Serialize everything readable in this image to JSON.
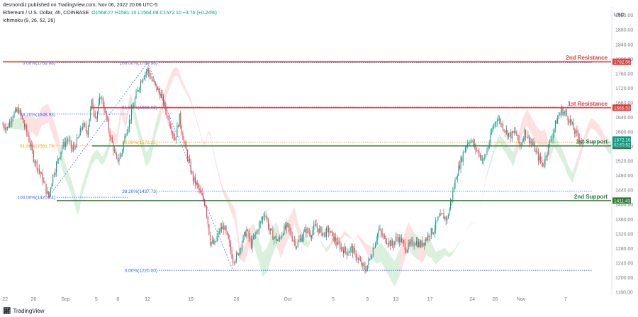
{
  "header": {
    "publisher": "desmondiz published on TradingView.com, Nov 06, 2022 20:06 UTC-5",
    "symbol": "Ethereum / U.S. Dollar, 4h, COINBASE",
    "ohlc": "O1568.27  H1581.10  L1564.08  C1572.10  +3.76 (+0.24%)",
    "indicator": "Ichimoku (9, 26, 52, 26)"
  },
  "brand": {
    "name": "TradingView",
    "logo_icon": "tradingview-logo-icon"
  },
  "colors": {
    "up": "#089981",
    "down": "#f23645",
    "resistance": "#e53935",
    "support": "#2e7d32",
    "fib_blue": "#2962ff",
    "fib_orange": "#ff9800",
    "cloud_green": "#d8f0dc",
    "cloud_red": "#fde0e0",
    "price_badge": "#089981"
  },
  "chart_data": {
    "type": "candlestick",
    "currency_label": "USD",
    "y_ticks": [
      1160,
      1200,
      1240,
      1280,
      1320,
      1360,
      1400,
      1440,
      1480,
      1520,
      1560,
      1600,
      1640,
      1680,
      1720,
      1760,
      1800,
      1840,
      1880,
      1920
    ],
    "x_ticks": [
      "22",
      "26",
      "Sep",
      "5",
      "8",
      "12",
      "19",
      "26",
      "Oct",
      "5",
      "9",
      "13",
      "17",
      "24",
      "28",
      "Nov",
      "7"
    ],
    "ylim": [
      1160,
      1935
    ],
    "path_points": [
      [
        0,
        1620
      ],
      [
        4,
        1610
      ],
      [
        8,
        1645
      ],
      [
        14,
        1660
      ],
      [
        18,
        1625
      ],
      [
        22,
        1590
      ],
      [
        27,
        1530
      ],
      [
        31,
        1500
      ],
      [
        35,
        1470
      ],
      [
        40,
        1420
      ],
      [
        44,
        1480
      ],
      [
        48,
        1520
      ],
      [
        52,
        1560
      ],
      [
        57,
        1580
      ],
      [
        61,
        1550
      ],
      [
        66,
        1580
      ],
      [
        70,
        1620
      ],
      [
        74,
        1600
      ],
      [
        78,
        1680
      ],
      [
        82,
        1640
      ],
      [
        86,
        1700
      ],
      [
        90,
        1650
      ],
      [
        95,
        1580
      ],
      [
        100,
        1520
      ],
      [
        104,
        1540
      ],
      [
        108,
        1600
      ],
      [
        112,
        1640
      ],
      [
        116,
        1690
      ],
      [
        120,
        1730
      ],
      [
        124,
        1760
      ],
      [
        127,
        1770
      ],
      [
        131,
        1740
      ],
      [
        135,
        1720
      ],
      [
        139,
        1700
      ],
      [
        143,
        1660
      ],
      [
        147,
        1620
      ],
      [
        151,
        1580
      ],
      [
        155,
        1640
      ],
      [
        159,
        1570
      ],
      [
        163,
        1520
      ],
      [
        167,
        1470
      ],
      [
        171,
        1450
      ],
      [
        175,
        1420
      ],
      [
        178,
        1400
      ],
      [
        182,
        1300
      ],
      [
        186,
        1290
      ],
      [
        190,
        1330
      ],
      [
        194,
        1340
      ],
      [
        198,
        1300
      ],
      [
        202,
        1250
      ],
      [
        206,
        1260
      ],
      [
        210,
        1300
      ],
      [
        214,
        1330
      ],
      [
        218,
        1290
      ],
      [
        222,
        1320
      ],
      [
        226,
        1350
      ],
      [
        230,
        1380
      ],
      [
        234,
        1330
      ],
      [
        238,
        1310
      ],
      [
        242,
        1300
      ],
      [
        246,
        1330
      ],
      [
        250,
        1340
      ],
      [
        254,
        1310
      ],
      [
        258,
        1290
      ],
      [
        262,
        1310
      ],
      [
        266,
        1330
      ],
      [
        270,
        1320
      ],
      [
        274,
        1340
      ],
      [
        278,
        1330
      ],
      [
        282,
        1320
      ],
      [
        286,
        1330
      ],
      [
        290,
        1310
      ],
      [
        294,
        1290
      ],
      [
        298,
        1280
      ],
      [
        302,
        1270
      ],
      [
        306,
        1280
      ],
      [
        310,
        1260
      ],
      [
        314,
        1240
      ],
      [
        318,
        1220
      ],
      [
        322,
        1250
      ],
      [
        326,
        1290
      ],
      [
        330,
        1330
      ],
      [
        334,
        1310
      ],
      [
        338,
        1300
      ],
      [
        342,
        1290
      ],
      [
        346,
        1310
      ],
      [
        350,
        1300
      ],
      [
        354,
        1280
      ],
      [
        358,
        1290
      ],
      [
        362,
        1300
      ],
      [
        366,
        1290
      ],
      [
        370,
        1300
      ],
      [
        374,
        1320
      ],
      [
        378,
        1330
      ],
      [
        382,
        1360
      ],
      [
        386,
        1370
      ],
      [
        390,
        1360
      ],
      [
        394,
        1420
      ],
      [
        398,
        1480
      ],
      [
        402,
        1520
      ],
      [
        406,
        1560
      ],
      [
        410,
        1580
      ],
      [
        414,
        1560
      ],
      [
        418,
        1540
      ],
      [
        422,
        1520
      ],
      [
        426,
        1560
      ],
      [
        430,
        1610
      ],
      [
        434,
        1640
      ],
      [
        438,
        1620
      ],
      [
        442,
        1600
      ],
      [
        446,
        1590
      ],
      [
        450,
        1600
      ],
      [
        454,
        1560
      ],
      [
        458,
        1600
      ],
      [
        462,
        1580
      ],
      [
        466,
        1560
      ],
      [
        470,
        1530
      ],
      [
        474,
        1510
      ],
      [
        478,
        1550
      ],
      [
        482,
        1590
      ],
      [
        486,
        1630
      ],
      [
        490,
        1660
      ],
      [
        494,
        1650
      ],
      [
        498,
        1630
      ],
      [
        502,
        1600
      ],
      [
        506,
        1580
      ],
      [
        509,
        1572
      ]
    ],
    "levels": [
      {
        "name": "2nd Resistance",
        "value": 1792.55,
        "kind": "resistance"
      },
      {
        "name": "1st Resistance",
        "value": 1666.53,
        "kind": "resistance"
      },
      {
        "name": "1st Support",
        "value": 1561.62,
        "kind": "support"
      },
      {
        "name": "2nd Support",
        "value": 1411.43,
        "kind": "support"
      }
    ],
    "current_price": {
      "value": "1572.10",
      "countdown": "02:53:52"
    },
    "fib_left": [
      {
        "label": "0.00%(1789.98)",
        "value": 1789.98,
        "color": "blue"
      },
      {
        "label": "38.20%(1648.93)",
        "value": 1648.93,
        "color": "blue"
      },
      {
        "label": "61.80%(1561.79)",
        "value": 1561.79,
        "color": "orange"
      },
      {
        "label": "100.00%(1420.74)",
        "value": 1420.74,
        "color": "blue"
      }
    ],
    "fib_right": [
      {
        "label": "100.00%(1789.98)",
        "value": 1789.98,
        "color": "blue"
      },
      {
        "label": "61.80%(1668.08)",
        "value": 1668.08,
        "color": "blue"
      },
      {
        "label": "50.00%(1572.25)",
        "value": 1572.25,
        "color": "orange"
      },
      {
        "label": "38.20%(1437.73)",
        "value": 1437.73,
        "color": "blue"
      },
      {
        "label": "0.00%(1220.00)",
        "value": 1220.0,
        "color": "blue"
      }
    ]
  }
}
